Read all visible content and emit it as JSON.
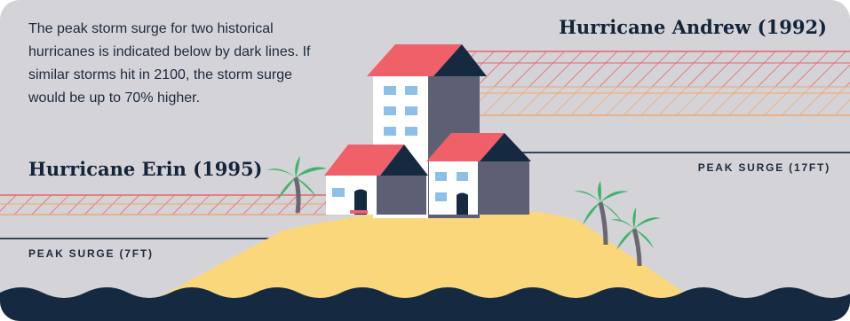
{
  "intro_text": "The peak storm surge for two historical hurricanes is indicated below by dark lines. If similar storms hit in 2100, the storm surge would be up to 70% higher.",
  "andrew": {
    "title": "Hurricane Andrew (1992)",
    "peak_label": "PEAK SURGE (17FT)"
  },
  "erin": {
    "title": "Hurricane Erin (1995)",
    "peak_label": "PEAK SURGE (7FT)"
  },
  "colors": {
    "background": "#d4d4d8",
    "ocean": "#152a40",
    "sand": "#fbd77c",
    "roof": "#ef6068",
    "house_dark": "#5d6074",
    "window": "#8cc0ea",
    "palm_leaf": "#3fb36a",
    "hatch_red": "#ef6068",
    "hatch_orange": "#f3a56b"
  }
}
